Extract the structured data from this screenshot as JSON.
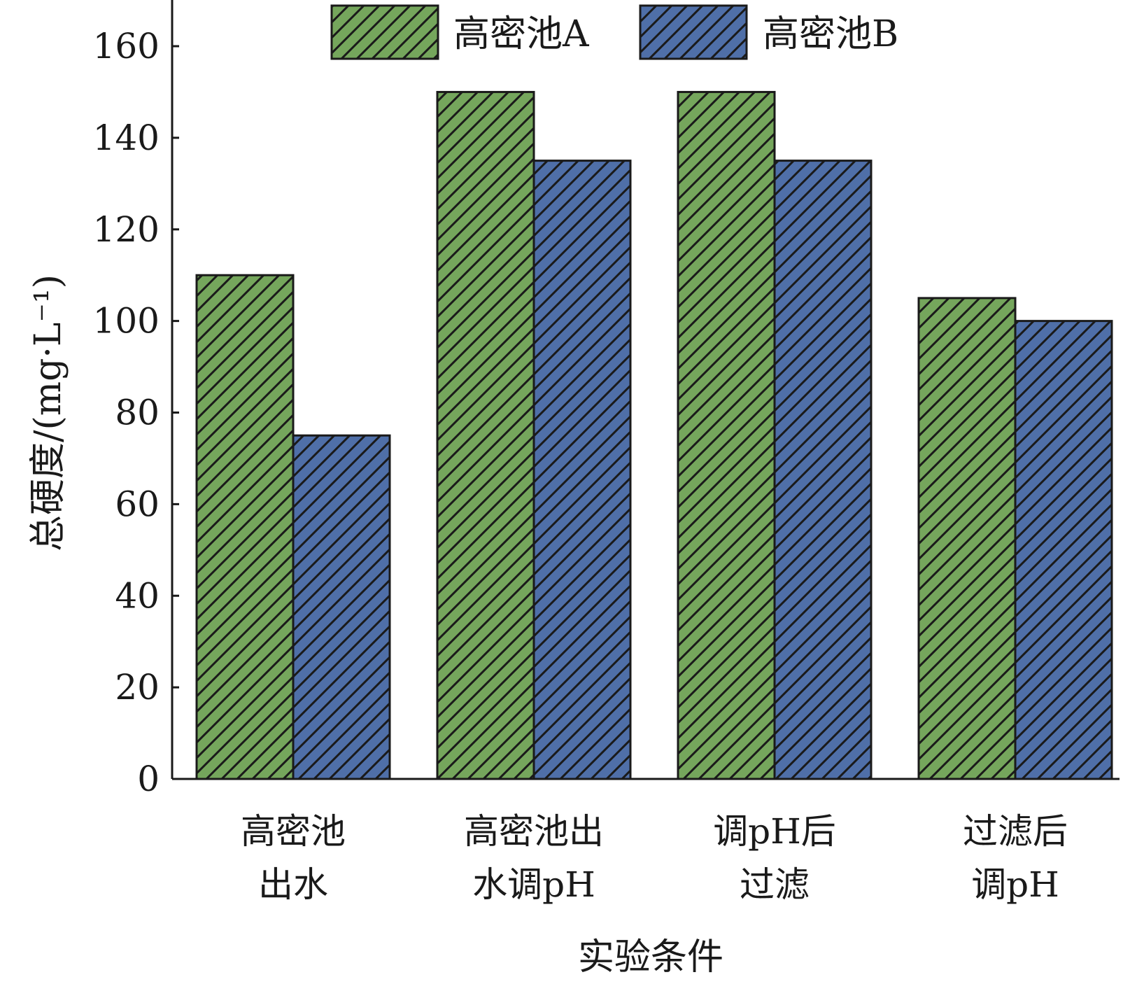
{
  "chart_data": {
    "type": "bar",
    "categories": [
      [
        "高密池",
        "出水"
      ],
      [
        "高密池出",
        "水调pH"
      ],
      [
        "调pH后",
        "过滤"
      ],
      [
        "过滤后",
        "调pH"
      ]
    ],
    "series": [
      {
        "name": "高密池A",
        "values": [
          110,
          150,
          150,
          105
        ],
        "color": "#75a65c"
      },
      {
        "name": "高密池B",
        "values": [
          75,
          135,
          135,
          100
        ],
        "color": "#4f6fa8"
      }
    ],
    "xlabel": "实验条件",
    "ylabel": "总硬度/(mg·L⁻¹)",
    "ylim": [
      0,
      160
    ],
    "yticks": [
      0,
      20,
      40,
      60,
      80,
      100,
      120,
      140,
      160
    ],
    "grid": false,
    "legend_position": "top"
  }
}
